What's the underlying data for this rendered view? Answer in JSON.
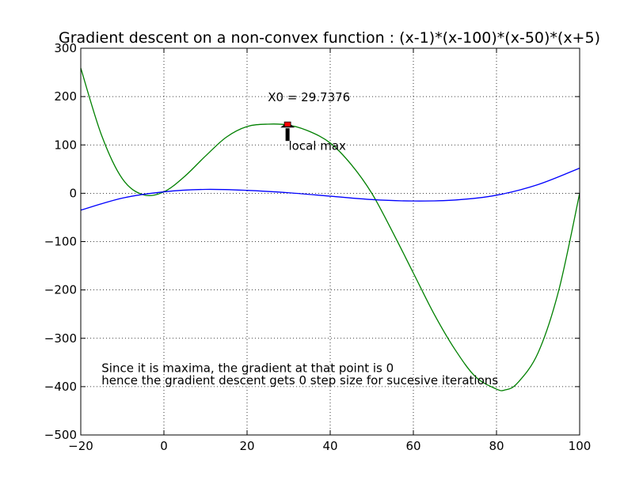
{
  "chart_data": {
    "type": "line",
    "title": "Gradient descent on a non-convex function : (x-1)*(x-100)*(x-50)*(x+5)",
    "xlabel": "",
    "ylabel": "",
    "xlim": [
      -20,
      100
    ],
    "ylim": [
      -500,
      300
    ],
    "xticks": [
      -20,
      0,
      20,
      40,
      60,
      80,
      100
    ],
    "yticks": [
      -500,
      -400,
      -300,
      -200,
      -100,
      0,
      100,
      200,
      300
    ],
    "grid": true,
    "colors": {
      "green": "#008000",
      "blue": "#0000ff",
      "marker": "#ff0000",
      "arrow": "#000000"
    },
    "series": [
      {
        "color": "#008000",
        "x": [
          -20,
          -15,
          -10,
          -5,
          0,
          5,
          10,
          15,
          20,
          25,
          30,
          35,
          40,
          45,
          50,
          55,
          60,
          65,
          70,
          75,
          80,
          82,
          85,
          90,
          95,
          100
        ],
        "y": [
          259,
          120,
          30,
          -3,
          3,
          35,
          77,
          116,
          138,
          143,
          141,
          128,
          104,
          60,
          0,
          -80,
          -165,
          -250,
          -323,
          -380,
          -405,
          -407,
          -393,
          -330,
          -200,
          0
        ]
      },
      {
        "color": "#0000ff",
        "x": [
          -20,
          -10,
          0,
          10,
          20,
          30,
          40,
          50,
          60,
          70,
          80,
          90,
          100
        ],
        "y": [
          -35,
          -10,
          3,
          8,
          6,
          1,
          -6,
          -13,
          -16,
          -14,
          -4,
          18,
          52
        ]
      }
    ],
    "point": {
      "x": 29.7376,
      "y": 141
    },
    "annotations": {
      "x0_label": "X0 = 29.7376",
      "local_max_label": "local max",
      "note_line1": "Since it is maxima, the gradient at that point is 0",
      "note_line2": "hence the gradient descent gets 0 step size for sucesive iterations"
    }
  }
}
